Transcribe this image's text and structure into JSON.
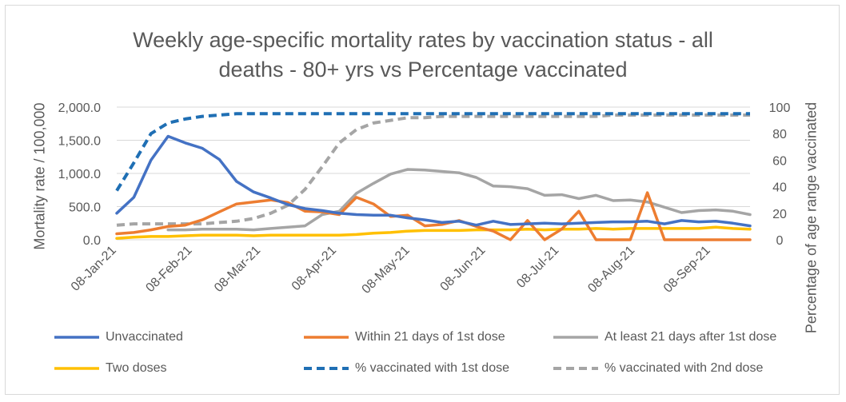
{
  "chart_data": {
    "type": "line",
    "title": "Weekly age-specific mortality rates by vaccination status - all deaths - 80+ yrs vs Percentage vaccinated",
    "title_lines": [
      "Weekly age-specific mortality rates by vaccination status - all",
      "deaths - 80+ yrs vs Percentage vaccinated"
    ],
    "ylabel_left": "Mortality rate / 100,000",
    "ylabel_right": "Percentage of age range vaccinated",
    "ylim_left": [
      0,
      2000
    ],
    "ylim_right": [
      0,
      100
    ],
    "yticks_left": [
      "0.0",
      "500.0",
      "1,000.0",
      "1,500.0",
      "2,000.0"
    ],
    "yticks_right": [
      "0",
      "20",
      "40",
      "60",
      "80",
      "100"
    ],
    "x_tick_labels": [
      "08-Jan-21",
      "08-Feb-21",
      "08-Mar-21",
      "08-Apr-21",
      "08-May-21",
      "08-Jun-21",
      "08-Jul-21",
      "08-Aug-21",
      "08-Sep-21"
    ],
    "x_tick_weeks": [
      0,
      4.43,
      8.43,
      12.86,
      17.14,
      21.57,
      25.86,
      30.29,
      34.71
    ],
    "n_weeks": 38,
    "legend_position": "bottom",
    "series": [
      {
        "name": "Unvaccinated",
        "axis": "left",
        "color": "#4472c4",
        "dash": false,
        "values": [
          400,
          640,
          1200,
          1560,
          1460,
          1380,
          1210,
          880,
          720,
          630,
          530,
          470,
          440,
          400,
          380,
          370,
          370,
          330,
          300,
          260,
          280,
          220,
          280,
          230,
          240,
          250,
          240,
          250,
          260,
          270,
          270,
          280,
          240,
          290,
          270,
          280,
          250,
          210
        ]
      },
      {
        "name": "Within 21 days of 1st dose",
        "axis": "left",
        "color": "#ed7d31",
        "dash": false,
        "values": [
          90,
          110,
          150,
          200,
          220,
          300,
          420,
          540,
          570,
          600,
          560,
          430,
          420,
          380,
          640,
          540,
          350,
          370,
          210,
          230,
          290,
          200,
          130,
          0,
          290,
          0,
          160,
          430,
          0,
          0,
          0,
          710,
          0,
          0,
          0,
          0,
          0,
          0
        ]
      },
      {
        "name": "At least 21 days after 1st dose",
        "axis": "left",
        "color": "#a5a5a5",
        "dash": false,
        "values": [
          null,
          null,
          null,
          150,
          150,
          160,
          160,
          160,
          150,
          170,
          190,
          210,
          380,
          430,
          700,
          850,
          990,
          1060,
          1050,
          1030,
          1010,
          940,
          810,
          800,
          770,
          670,
          680,
          620,
          670,
          590,
          600,
          570,
          490,
          410,
          440,
          450,
          430,
          380
        ]
      },
      {
        "name": "Two doses",
        "axis": "left",
        "color": "#ffc000",
        "dash": false,
        "values": [
          20,
          40,
          50,
          50,
          60,
          70,
          70,
          70,
          60,
          70,
          70,
          70,
          70,
          70,
          80,
          100,
          110,
          130,
          140,
          140,
          140,
          150,
          150,
          150,
          160,
          150,
          160,
          160,
          170,
          160,
          170,
          170,
          170,
          170,
          170,
          190,
          170,
          160
        ]
      },
      {
        "name": "% vaccinated with 1st dose",
        "axis": "right",
        "color": "#1f6fb4",
        "dash": true,
        "values": [
          37,
          58,
          80,
          88,
          91,
          93,
          94,
          95,
          95,
          95,
          95,
          95,
          95,
          95,
          95,
          95,
          95,
          95,
          95,
          95,
          95,
          95,
          95,
          95,
          95,
          95,
          95,
          95,
          95,
          95,
          95,
          95,
          95,
          95,
          95,
          95,
          95,
          95
        ]
      },
      {
        "name": "% vaccinated with 2nd dose",
        "axis": "right",
        "color": "#a5a5a5",
        "dash": true,
        "values": [
          11,
          12,
          12,
          12,
          12,
          12,
          13,
          14,
          16,
          20,
          26,
          38,
          55,
          73,
          83,
          88,
          90,
          92,
          92,
          93,
          93,
          93,
          93,
          93,
          93,
          93,
          93,
          93,
          93,
          94,
          94,
          94,
          94,
          94,
          94,
          94,
          94,
          94
        ]
      }
    ]
  }
}
